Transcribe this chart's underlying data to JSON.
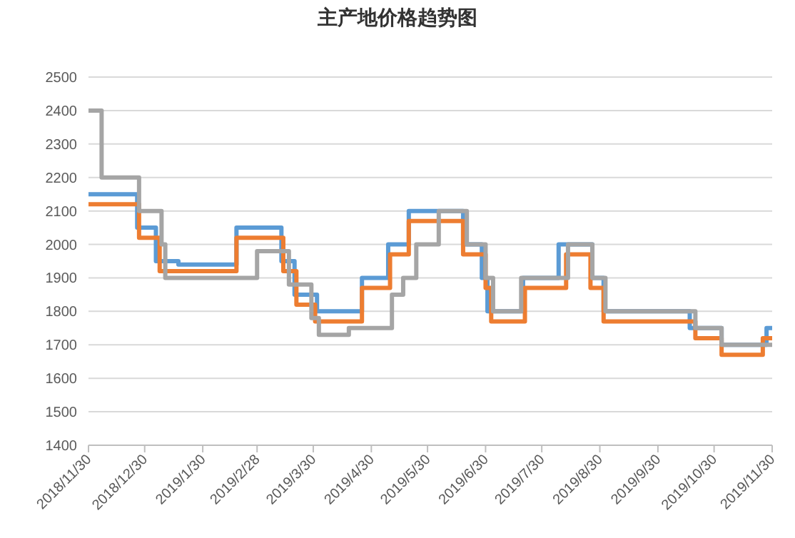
{
  "chart_data": {
    "type": "step",
    "title": "主产地价格趋势图",
    "xlim": [
      "2018-11-30",
      "2019-11-30"
    ],
    "xticks": [
      {
        "value": "2018-11-30",
        "label": "2018/11/30"
      },
      {
        "value": "2018-12-30",
        "label": "2018/12/30"
      },
      {
        "value": "2019-01-30",
        "label": "2019/1/30"
      },
      {
        "value": "2019-02-28",
        "label": "2019/2/28"
      },
      {
        "value": "2019-03-30",
        "label": "2019/3/30"
      },
      {
        "value": "2019-04-30",
        "label": "2019/4/30"
      },
      {
        "value": "2019-05-30",
        "label": "2019/5/30"
      },
      {
        "value": "2019-06-30",
        "label": "2019/6/30"
      },
      {
        "value": "2019-07-30",
        "label": "2019/7/30"
      },
      {
        "value": "2019-08-30",
        "label": "2019/8/30"
      },
      {
        "value": "2019-09-30",
        "label": "2019/9/30"
      },
      {
        "value": "2019-10-30",
        "label": "2019/10/30"
      },
      {
        "value": "2019-11-30",
        "label": "2019/11/30"
      }
    ],
    "ylim": [
      1400,
      2500
    ],
    "yticks": [
      1400,
      1500,
      1600,
      1700,
      1800,
      1900,
      2000,
      2100,
      2200,
      2300,
      2400,
      2500
    ],
    "grid": "y",
    "marker": "none",
    "line_style": "solid",
    "series": [
      {
        "color": "#5b9bd5",
        "x": [
          "2018-11-30",
          "2018-12-26",
          "2019-01-05",
          "2019-01-17",
          "2019-02-17",
          "2019-03-13",
          "2019-03-20",
          "2019-04-01",
          "2019-04-25",
          "2019-05-09",
          "2019-05-20",
          "2019-06-18",
          "2019-06-28",
          "2019-07-01",
          "2019-07-20",
          "2019-08-08",
          "2019-08-26",
          "2019-09-01",
          "2019-10-17",
          "2019-11-03",
          "2019-11-27",
          "2019-11-30"
        ],
        "values": [
          2150,
          2050,
          1950,
          1940,
          2050,
          1950,
          1850,
          1800,
          1900,
          2000,
          2100,
          2000,
          1900,
          1800,
          1900,
          2000,
          1900,
          1800,
          1750,
          1700,
          1750,
          1750
        ]
      },
      {
        "color": "#ed7d31",
        "x": [
          "2018-11-30",
          "2018-12-27",
          "2019-01-07",
          "2019-02-17",
          "2019-03-14",
          "2019-03-21",
          "2019-03-31",
          "2019-04-25",
          "2019-05-10",
          "2019-05-20",
          "2019-06-18",
          "2019-06-30",
          "2019-07-03",
          "2019-07-21",
          "2019-08-12",
          "2019-08-25",
          "2019-09-01",
          "2019-10-20",
          "2019-11-03",
          "2019-11-25",
          "2019-11-30"
        ],
        "values": [
          2120,
          2020,
          1920,
          2020,
          1920,
          1820,
          1770,
          1870,
          1970,
          2070,
          1970,
          1870,
          1770,
          1870,
          1970,
          1870,
          1770,
          1720,
          1670,
          1720,
          1720
        ]
      },
      {
        "color": "#a5a5a5",
        "x": [
          "2018-11-30",
          "2018-12-07",
          "2018-12-27",
          "2019-01-08",
          "2019-01-10",
          "2019-02-28",
          "2019-03-17",
          "2019-03-29",
          "2019-04-02",
          "2019-04-18",
          "2019-05-11",
          "2019-05-17",
          "2019-05-24",
          "2019-06-05",
          "2019-06-20",
          "2019-06-30",
          "2019-07-04",
          "2019-07-19",
          "2019-08-13",
          "2019-08-26",
          "2019-09-02",
          "2019-10-20",
          "2019-11-03",
          "2019-11-30"
        ],
        "values": [
          2400,
          2200,
          2100,
          2000,
          1900,
          1980,
          1880,
          1780,
          1730,
          1750,
          1850,
          1900,
          2000,
          2100,
          2000,
          1900,
          1800,
          1900,
          2000,
          1900,
          1800,
          1750,
          1700,
          1700
        ]
      }
    ]
  }
}
